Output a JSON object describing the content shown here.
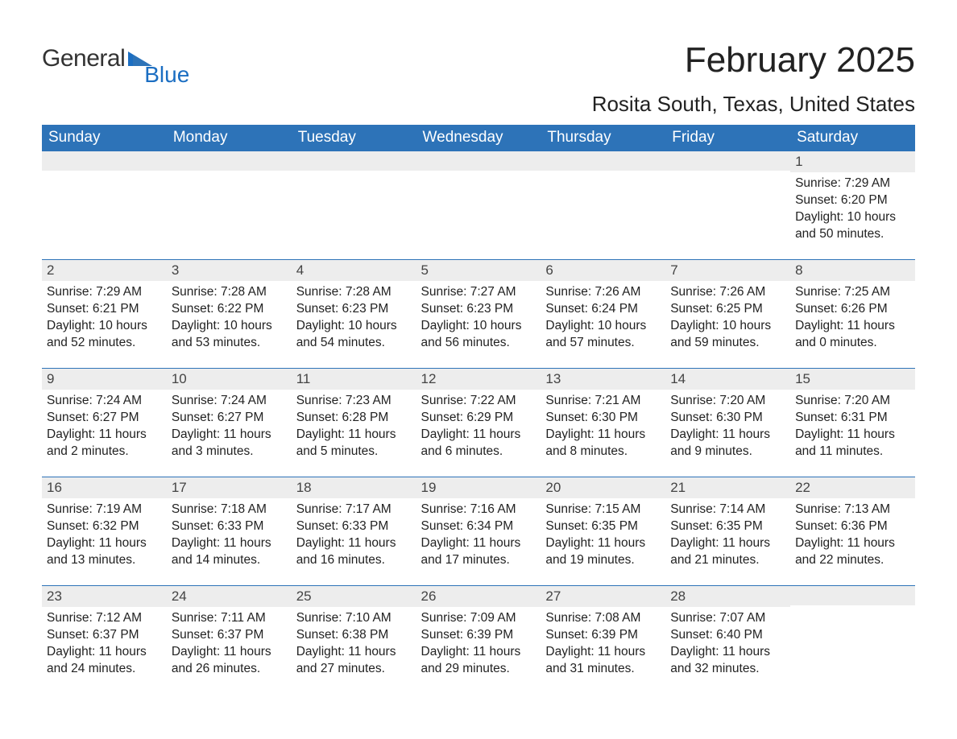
{
  "brand": {
    "word1": "General",
    "word2": "Blue",
    "color_primary": "#1b6ec2",
    "color_text": "#333333"
  },
  "header": {
    "title": "February 2025",
    "location": "Rosita South, Texas, United States",
    "title_fontsize_pt": 33,
    "location_fontsize_pt": 20
  },
  "calendar": {
    "columns": [
      "Sunday",
      "Monday",
      "Tuesday",
      "Wednesday",
      "Thursday",
      "Friday",
      "Saturday"
    ],
    "header_bg": "#2d73b8",
    "header_text_color": "#ffffff",
    "row_divider_color": "#2d73b8",
    "daynum_bg": "#ededed",
    "body_text_color": "#222222",
    "weeks": [
      [
        {
          "day": "",
          "sunrise": "",
          "sunset": "",
          "daylight": ""
        },
        {
          "day": "",
          "sunrise": "",
          "sunset": "",
          "daylight": ""
        },
        {
          "day": "",
          "sunrise": "",
          "sunset": "",
          "daylight": ""
        },
        {
          "day": "",
          "sunrise": "",
          "sunset": "",
          "daylight": ""
        },
        {
          "day": "",
          "sunrise": "",
          "sunset": "",
          "daylight": ""
        },
        {
          "day": "",
          "sunrise": "",
          "sunset": "",
          "daylight": ""
        },
        {
          "day": "1",
          "sunrise": "Sunrise: 7:29 AM",
          "sunset": "Sunset: 6:20 PM",
          "daylight": "Daylight: 10 hours and 50 minutes."
        }
      ],
      [
        {
          "day": "2",
          "sunrise": "Sunrise: 7:29 AM",
          "sunset": "Sunset: 6:21 PM",
          "daylight": "Daylight: 10 hours and 52 minutes."
        },
        {
          "day": "3",
          "sunrise": "Sunrise: 7:28 AM",
          "sunset": "Sunset: 6:22 PM",
          "daylight": "Daylight: 10 hours and 53 minutes."
        },
        {
          "day": "4",
          "sunrise": "Sunrise: 7:28 AM",
          "sunset": "Sunset: 6:23 PM",
          "daylight": "Daylight: 10 hours and 54 minutes."
        },
        {
          "day": "5",
          "sunrise": "Sunrise: 7:27 AM",
          "sunset": "Sunset: 6:23 PM",
          "daylight": "Daylight: 10 hours and 56 minutes."
        },
        {
          "day": "6",
          "sunrise": "Sunrise: 7:26 AM",
          "sunset": "Sunset: 6:24 PM",
          "daylight": "Daylight: 10 hours and 57 minutes."
        },
        {
          "day": "7",
          "sunrise": "Sunrise: 7:26 AM",
          "sunset": "Sunset: 6:25 PM",
          "daylight": "Daylight: 10 hours and 59 minutes."
        },
        {
          "day": "8",
          "sunrise": "Sunrise: 7:25 AM",
          "sunset": "Sunset: 6:26 PM",
          "daylight": "Daylight: 11 hours and 0 minutes."
        }
      ],
      [
        {
          "day": "9",
          "sunrise": "Sunrise: 7:24 AM",
          "sunset": "Sunset: 6:27 PM",
          "daylight": "Daylight: 11 hours and 2 minutes."
        },
        {
          "day": "10",
          "sunrise": "Sunrise: 7:24 AM",
          "sunset": "Sunset: 6:27 PM",
          "daylight": "Daylight: 11 hours and 3 minutes."
        },
        {
          "day": "11",
          "sunrise": "Sunrise: 7:23 AM",
          "sunset": "Sunset: 6:28 PM",
          "daylight": "Daylight: 11 hours and 5 minutes."
        },
        {
          "day": "12",
          "sunrise": "Sunrise: 7:22 AM",
          "sunset": "Sunset: 6:29 PM",
          "daylight": "Daylight: 11 hours and 6 minutes."
        },
        {
          "day": "13",
          "sunrise": "Sunrise: 7:21 AM",
          "sunset": "Sunset: 6:30 PM",
          "daylight": "Daylight: 11 hours and 8 minutes."
        },
        {
          "day": "14",
          "sunrise": "Sunrise: 7:20 AM",
          "sunset": "Sunset: 6:30 PM",
          "daylight": "Daylight: 11 hours and 9 minutes."
        },
        {
          "day": "15",
          "sunrise": "Sunrise: 7:20 AM",
          "sunset": "Sunset: 6:31 PM",
          "daylight": "Daylight: 11 hours and 11 minutes."
        }
      ],
      [
        {
          "day": "16",
          "sunrise": "Sunrise: 7:19 AM",
          "sunset": "Sunset: 6:32 PM",
          "daylight": "Daylight: 11 hours and 13 minutes."
        },
        {
          "day": "17",
          "sunrise": "Sunrise: 7:18 AM",
          "sunset": "Sunset: 6:33 PM",
          "daylight": "Daylight: 11 hours and 14 minutes."
        },
        {
          "day": "18",
          "sunrise": "Sunrise: 7:17 AM",
          "sunset": "Sunset: 6:33 PM",
          "daylight": "Daylight: 11 hours and 16 minutes."
        },
        {
          "day": "19",
          "sunrise": "Sunrise: 7:16 AM",
          "sunset": "Sunset: 6:34 PM",
          "daylight": "Daylight: 11 hours and 17 minutes."
        },
        {
          "day": "20",
          "sunrise": "Sunrise: 7:15 AM",
          "sunset": "Sunset: 6:35 PM",
          "daylight": "Daylight: 11 hours and 19 minutes."
        },
        {
          "day": "21",
          "sunrise": "Sunrise: 7:14 AM",
          "sunset": "Sunset: 6:35 PM",
          "daylight": "Daylight: 11 hours and 21 minutes."
        },
        {
          "day": "22",
          "sunrise": "Sunrise: 7:13 AM",
          "sunset": "Sunset: 6:36 PM",
          "daylight": "Daylight: 11 hours and 22 minutes."
        }
      ],
      [
        {
          "day": "23",
          "sunrise": "Sunrise: 7:12 AM",
          "sunset": "Sunset: 6:37 PM",
          "daylight": "Daylight: 11 hours and 24 minutes."
        },
        {
          "day": "24",
          "sunrise": "Sunrise: 7:11 AM",
          "sunset": "Sunset: 6:37 PM",
          "daylight": "Daylight: 11 hours and 26 minutes."
        },
        {
          "day": "25",
          "sunrise": "Sunrise: 7:10 AM",
          "sunset": "Sunset: 6:38 PM",
          "daylight": "Daylight: 11 hours and 27 minutes."
        },
        {
          "day": "26",
          "sunrise": "Sunrise: 7:09 AM",
          "sunset": "Sunset: 6:39 PM",
          "daylight": "Daylight: 11 hours and 29 minutes."
        },
        {
          "day": "27",
          "sunrise": "Sunrise: 7:08 AM",
          "sunset": "Sunset: 6:39 PM",
          "daylight": "Daylight: 11 hours and 31 minutes."
        },
        {
          "day": "28",
          "sunrise": "Sunrise: 7:07 AM",
          "sunset": "Sunset: 6:40 PM",
          "daylight": "Daylight: 11 hours and 32 minutes."
        },
        {
          "day": "",
          "sunrise": "",
          "sunset": "",
          "daylight": ""
        }
      ]
    ]
  }
}
